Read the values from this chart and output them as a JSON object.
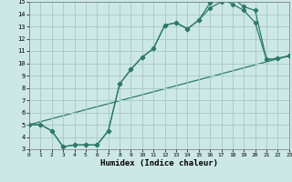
{
  "xlabel": "Humidex (Indice chaleur)",
  "xlim": [
    0,
    23
  ],
  "ylim": [
    3,
    15
  ],
  "xticks": [
    0,
    1,
    2,
    3,
    4,
    5,
    6,
    7,
    8,
    9,
    10,
    11,
    12,
    13,
    14,
    15,
    16,
    17,
    18,
    19,
    20,
    21,
    22,
    23
  ],
  "yticks": [
    3,
    4,
    5,
    6,
    7,
    8,
    9,
    10,
    11,
    12,
    13,
    14,
    15
  ],
  "bg_color": "#cce8e4",
  "grid_color": "#aaccc8",
  "line_color": "#2d7a6a",
  "line1_x": [
    0,
    1,
    2,
    3,
    4,
    5,
    6,
    7,
    8,
    9,
    10,
    11,
    12,
    13,
    14,
    15,
    16,
    17,
    18,
    19,
    20,
    21,
    22,
    23
  ],
  "line1_y": [
    5.0,
    5.0,
    4.5,
    3.2,
    3.35,
    3.35,
    3.35,
    4.5,
    8.3,
    9.5,
    10.5,
    11.2,
    13.1,
    13.3,
    12.8,
    13.5,
    14.9,
    15.3,
    14.8,
    14.3,
    13.3,
    10.3,
    10.4,
    10.6
  ],
  "line2_x": [
    0,
    1,
    2,
    3,
    4,
    5,
    6,
    7,
    8,
    9,
    10,
    11,
    12,
    13,
    14,
    15,
    16,
    17,
    18,
    19,
    20,
    21,
    22,
    23
  ],
  "line2_y": [
    5.0,
    5.0,
    4.5,
    3.2,
    3.35,
    3.35,
    3.35,
    4.5,
    8.3,
    9.5,
    10.5,
    11.2,
    13.1,
    13.3,
    12.8,
    13.5,
    14.5,
    15.0,
    15.3,
    14.6,
    14.3,
    10.3,
    10.4,
    10.6
  ],
  "line3_x": [
    0,
    23
  ],
  "line3_y": [
    5.0,
    10.6
  ]
}
